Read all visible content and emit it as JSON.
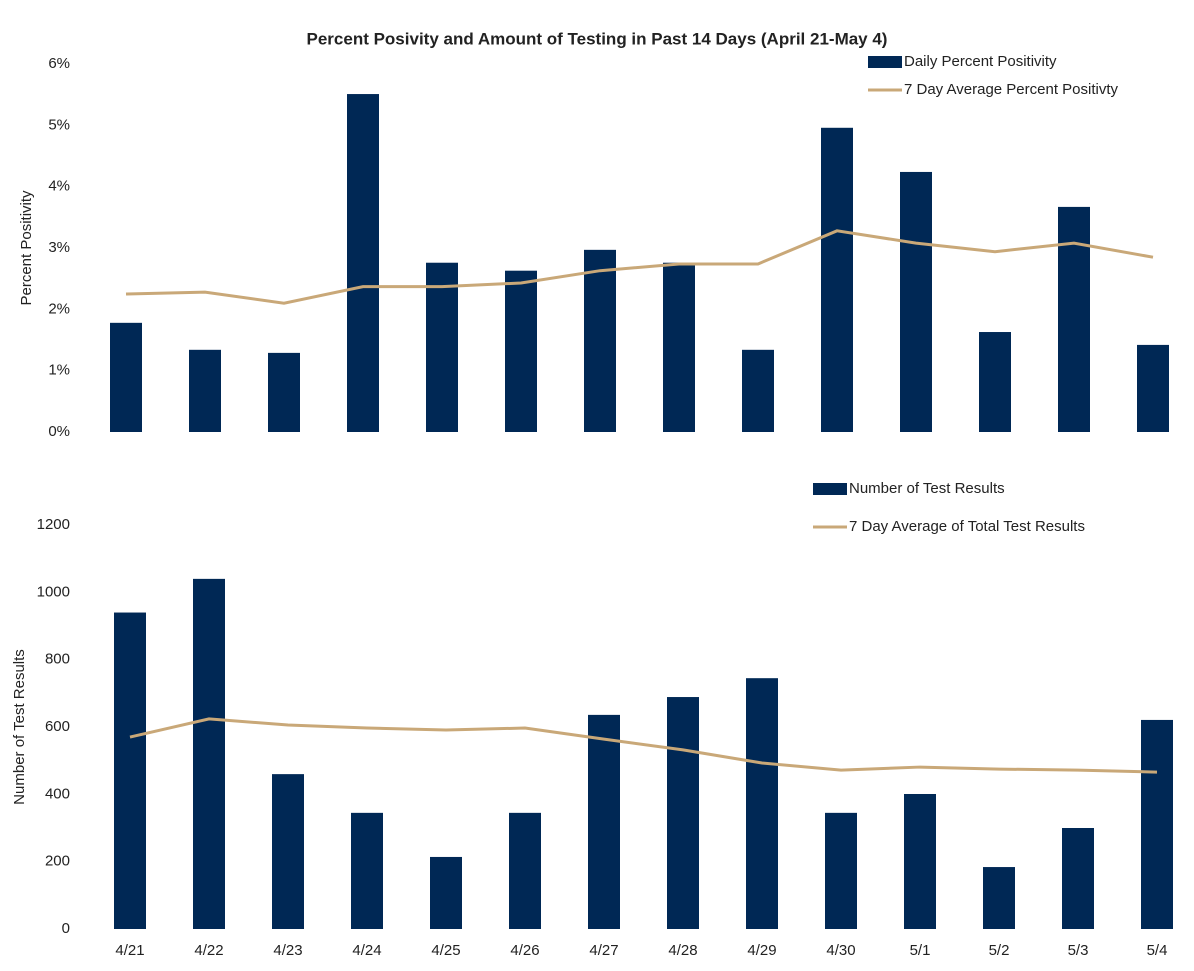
{
  "chart_data": [
    {
      "type": "bar",
      "title": "Percent Posivity and Amount of Testing in Past 14 Days (April 21-May 4)",
      "y_label": "Percent Positivity",
      "ylim": [
        0,
        6
      ],
      "yticks": [
        {
          "value": 0,
          "label": "0%"
        },
        {
          "value": 1,
          "label": "1%"
        },
        {
          "value": 2,
          "label": "2%"
        },
        {
          "value": 3,
          "label": "3%"
        },
        {
          "value": 4,
          "label": "4%"
        },
        {
          "value": 5,
          "label": "5%"
        },
        {
          "value": 6,
          "label": "6%"
        }
      ],
      "series": [
        {
          "name": "Daily Percent Positivity",
          "type": "bar",
          "color": "#002855",
          "values": [
            1.78,
            1.34,
            1.29,
            5.51,
            2.76,
            2.63,
            2.97,
            2.76,
            1.34,
            4.96,
            4.24,
            1.63,
            3.67,
            1.42
          ]
        },
        {
          "name": "7 Day Average Percent Positivty",
          "type": "line",
          "color": "#c9a878",
          "values": [
            2.25,
            2.28,
            2.1,
            2.37,
            2.37,
            2.43,
            2.63,
            2.74,
            2.74,
            3.28,
            3.08,
            2.94,
            3.08,
            2.85
          ]
        }
      ]
    },
    {
      "type": "bar",
      "y_label": "Number of Test Results",
      "categories": [
        "4/21",
        "4/22",
        "4/23",
        "4/24",
        "4/25",
        "4/26",
        "4/27",
        "4/28",
        "4/29",
        "4/30",
        "5/1",
        "5/2",
        "5/3",
        "5/4"
      ],
      "ylim": [
        0,
        1200
      ],
      "yticks": [
        0,
        200,
        400,
        600,
        800,
        1000,
        1200
      ],
      "series": [
        {
          "name": "Number of Test Results",
          "type": "bar",
          "color": "#002855",
          "values": [
            940,
            1040,
            460,
            345,
            214,
            345,
            636,
            689,
            745,
            345,
            401,
            184,
            300,
            621
          ]
        },
        {
          "name": "7 Day Average of Total Test Results",
          "type": "line",
          "color": "#c9a878",
          "values": [
            570,
            624,
            606,
            597,
            591,
            597,
            564,
            532,
            493,
            472,
            481,
            475,
            472,
            466
          ]
        }
      ]
    }
  ]
}
